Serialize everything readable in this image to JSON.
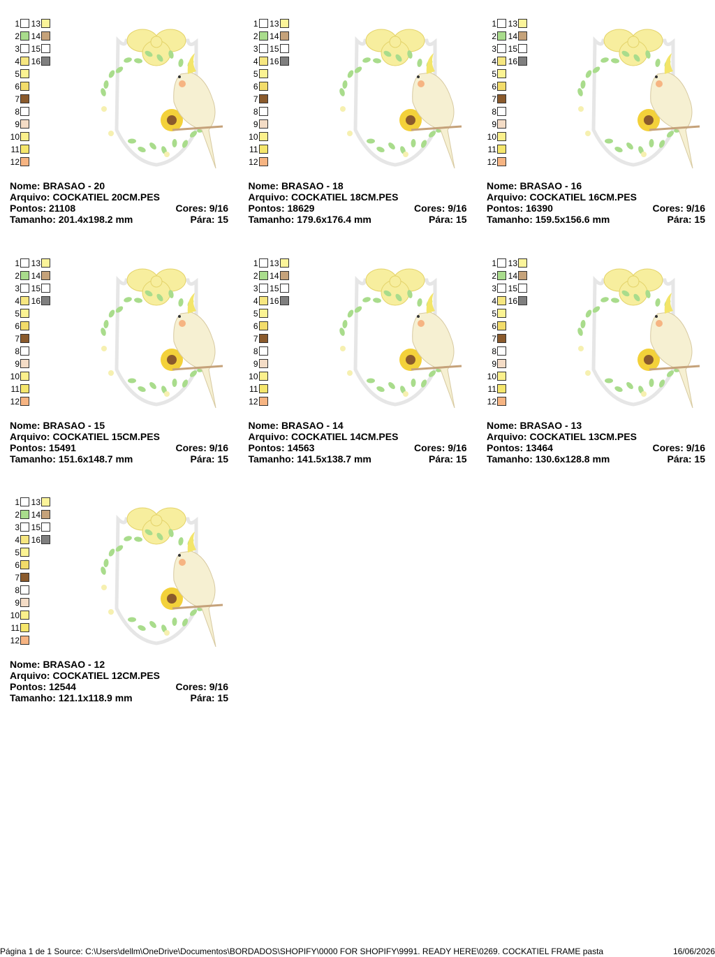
{
  "palette": [
    {
      "num": "1",
      "color": "#ffffff"
    },
    {
      "num": "2",
      "color": "#a9dc8c"
    },
    {
      "num": "3",
      "color": "#ffffff"
    },
    {
      "num": "4",
      "color": "#f6e680"
    },
    {
      "num": "5",
      "color": "#fbf393"
    },
    {
      "num": "6",
      "color": "#f2dc6a"
    },
    {
      "num": "7",
      "color": "#8a5a2c"
    },
    {
      "num": "8",
      "color": "#ffffff"
    },
    {
      "num": "9",
      "color": "#f4dcc6"
    },
    {
      "num": "10",
      "color": "#fbf08c"
    },
    {
      "num": "11",
      "color": "#f5e66c"
    },
    {
      "num": "12",
      "color": "#f6b482"
    },
    {
      "num": "13",
      "color": "#fbf49a"
    },
    {
      "num": "14",
      "color": "#c5a27a"
    },
    {
      "num": "15",
      "color": "#ffffff"
    },
    {
      "num": "16",
      "color": "#7f7f7f"
    }
  ],
  "designs": [
    {
      "name": "Nome: BRASAO - 20",
      "file": "Arquivo: COCKATIEL 20CM.PES",
      "stitches": "Pontos: 21108",
      "colors": "Cores: 9/16",
      "size": "Tamanho: 201.4x198.2 mm",
      "stops": "Pára: 15"
    },
    {
      "name": "Nome: BRASAO - 18",
      "file": "Arquivo: COCKATIEL 18CM.PES",
      "stitches": "Pontos: 18629",
      "colors": "Cores: 9/16",
      "size": "Tamanho: 179.6x176.4 mm",
      "stops": "Pára: 15"
    },
    {
      "name": "Nome: BRASAO - 16",
      "file": "Arquivo: COCKATIEL 16CM.PES",
      "stitches": "Pontos: 16390",
      "colors": "Cores: 9/16",
      "size": "Tamanho: 159.5x156.6 mm",
      "stops": "Pára: 15"
    },
    {
      "name": "Nome: BRASAO - 15",
      "file": "Arquivo: COCKATIEL 15CM.PES",
      "stitches": "Pontos: 15491",
      "colors": "Cores: 9/16",
      "size": "Tamanho: 151.6x148.7 mm",
      "stops": "Pára: 15"
    },
    {
      "name": "Nome: BRASAO - 14",
      "file": "Arquivo: COCKATIEL 14CM.PES",
      "stitches": "Pontos: 14563",
      "colors": "Cores: 9/16",
      "size": "Tamanho: 141.5x138.7 mm",
      "stops": "Pára: 15"
    },
    {
      "name": "Nome: BRASAO - 13",
      "file": "Arquivo: COCKATIEL 13CM.PES",
      "stitches": "Pontos: 13464",
      "colors": "Cores: 9/16",
      "size": "Tamanho: 130.6x128.8 mm",
      "stops": "Pára: 15"
    },
    {
      "name": "Nome: BRASAO - 12",
      "file": "Arquivo: COCKATIEL 12CM.PES",
      "stitches": "Pontos: 12544",
      "colors": "Cores: 9/16",
      "size": "Tamanho: 121.1x118.9 mm",
      "stops": "Pára: 15"
    }
  ],
  "footer": {
    "source": "Página 1 de 1 Source: C:\\Users\\dellm\\OneDrive\\Documentos\\BORDADOS\\SHOPIFY\\0000 FOR SHOPIFY\\9991. READY HERE\\0269. COCKATIEL FRAME pasta",
    "date": "16/06/2026"
  }
}
